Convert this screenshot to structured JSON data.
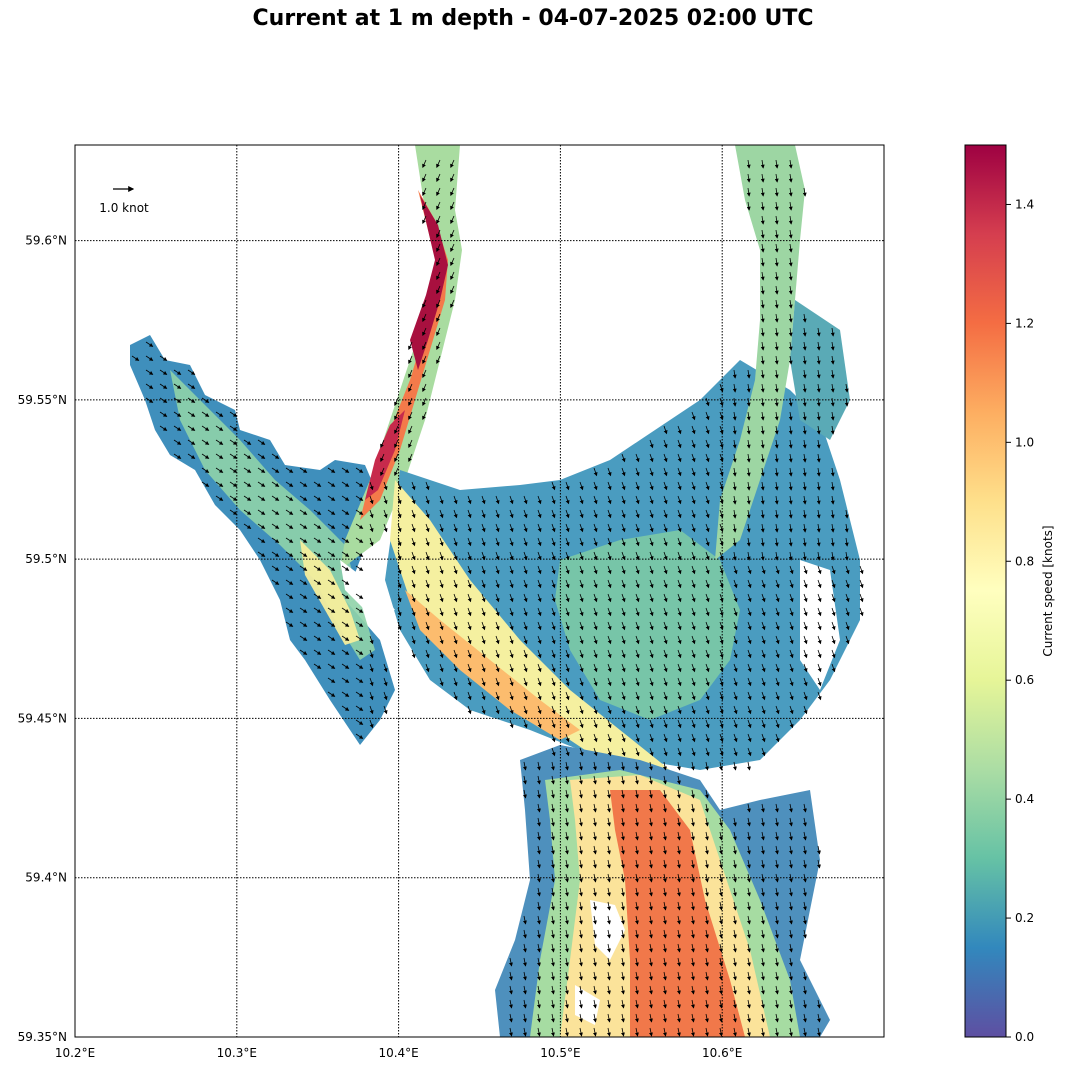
{
  "title": "Current at 1 m depth - 04-07-2025 02:00 UTC",
  "map": {
    "lon_labels": [
      {
        "lon": 10.2,
        "text": "10.2°E"
      },
      {
        "lon": 10.3,
        "text": "10.3°E"
      },
      {
        "lon": 10.4,
        "text": "10.4°E"
      },
      {
        "lon": 10.5,
        "text": "10.5°E"
      },
      {
        "lon": 10.6,
        "text": "10.6°E"
      }
    ],
    "lat_labels": [
      {
        "lat": 59.35,
        "text": "59.35°N"
      },
      {
        "lat": 59.4,
        "text": "59.4°N"
      },
      {
        "lat": 59.45,
        "text": "59.45°N"
      },
      {
        "lat": 59.5,
        "text": "59.5°N"
      },
      {
        "lat": 59.55,
        "text": "59.55°N"
      },
      {
        "lat": 59.6,
        "text": "59.6°N"
      }
    ],
    "lon_range": [
      10.2,
      10.7
    ],
    "lat_range": [
      59.35,
      59.63
    ],
    "gridlines": "dotted black",
    "reference_arrow_label": "1.0 knot",
    "reference_arrow_speed_knots": 1.0
  },
  "colorbar": {
    "label": "Current speed [knots]",
    "colormap": "Spectral_r",
    "range": [
      0.0,
      1.5
    ],
    "ticks": [
      {
        "value": 0.0,
        "text": "0.0"
      },
      {
        "value": 0.2,
        "text": "0.2"
      },
      {
        "value": 0.4,
        "text": "0.4"
      },
      {
        "value": 0.6,
        "text": "0.6"
      },
      {
        "value": 0.8,
        "text": "0.8"
      },
      {
        "value": 1.0,
        "text": "1.0"
      },
      {
        "value": 1.2,
        "text": "1.2"
      },
      {
        "value": 1.4,
        "text": "1.4"
      }
    ],
    "colors": [
      "#5e4fa2",
      "#3288bd",
      "#66c2a5",
      "#abdda4",
      "#e6f598",
      "#ffffbf",
      "#fee08b",
      "#fdae61",
      "#f46d43",
      "#d53e4f",
      "#9e0142"
    ]
  }
}
